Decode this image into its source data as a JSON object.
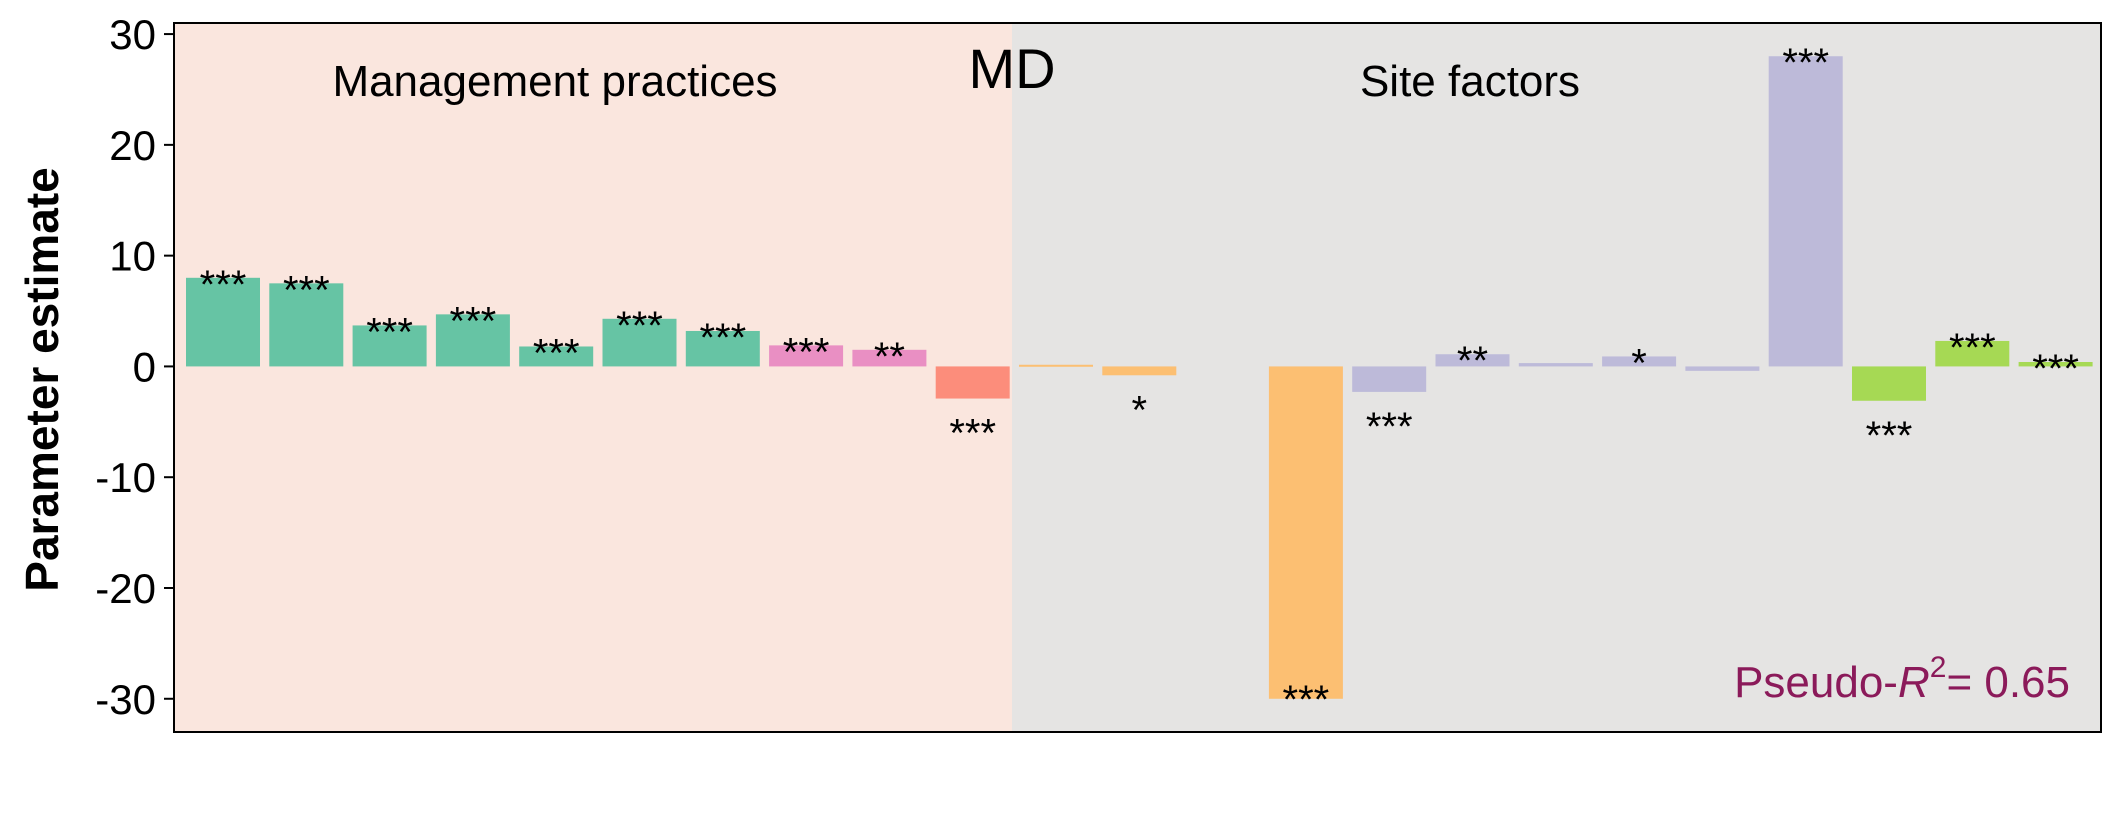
{
  "chart_data": {
    "type": "bar",
    "ylabel": "Parameter estimate",
    "ylim": [
      -33,
      31
    ],
    "yticks": [
      30,
      20,
      10,
      0,
      -10,
      -20,
      -30
    ],
    "ytick_labels": [
      "30",
      "20",
      "10",
      "0",
      "-10",
      "-20",
      "-30"
    ],
    "grid": false,
    "regions": [
      {
        "label": "Management practices",
        "from_bar": 0,
        "to_bar": 9,
        "color": "#fae6de"
      },
      {
        "label": "Site factors",
        "from_bar": 10,
        "to_bar": 22,
        "color": "#e5e4e3"
      }
    ],
    "center_label": "MD",
    "annotation": {
      "prefix": "Pseudo-",
      "var": "R",
      "sup": "2",
      "suffix": "= 0.65",
      "color": "#8b1a5a"
    },
    "bars": [
      {
        "value": 8.0,
        "color": "#66c4a4",
        "sig": "***"
      },
      {
        "value": 7.5,
        "color": "#66c4a4",
        "sig": "***"
      },
      {
        "value": 3.7,
        "color": "#66c4a4",
        "sig": "***"
      },
      {
        "value": 4.7,
        "color": "#66c4a4",
        "sig": "***"
      },
      {
        "value": 1.8,
        "color": "#66c4a4",
        "sig": "***"
      },
      {
        "value": 4.3,
        "color": "#66c4a4",
        "sig": "***"
      },
      {
        "value": 3.2,
        "color": "#66c4a4",
        "sig": "***"
      },
      {
        "value": 1.9,
        "color": "#e98fc3",
        "sig": "***"
      },
      {
        "value": 1.5,
        "color": "#e98fc3",
        "sig": "**"
      },
      {
        "value": -2.9,
        "color": "#fc8d7b",
        "sig": "***"
      },
      {
        "value": 0.15,
        "color": "#fcbf72",
        "sig": ""
      },
      {
        "value": -0.8,
        "color": "#fcbf72",
        "sig": "*"
      },
      {
        "value": 0,
        "color": "#fcbf72",
        "sig": ""
      },
      {
        "value": -30.0,
        "color": "#fcbf72",
        "sig": "***"
      },
      {
        "value": -2.3,
        "color": "#bdbad9",
        "sig": "***"
      },
      {
        "value": 1.1,
        "color": "#bdbad9",
        "sig": "**"
      },
      {
        "value": 0.3,
        "color": "#bdbad9",
        "sig": ""
      },
      {
        "value": 0.9,
        "color": "#bdbad9",
        "sig": "*"
      },
      {
        "value": -0.4,
        "color": "#bdbad9",
        "sig": ""
      },
      {
        "value": 28.0,
        "color": "#bdbad9",
        "sig": "***"
      },
      {
        "value": -3.1,
        "color": "#a6d954",
        "sig": "***"
      },
      {
        "value": 2.3,
        "color": "#a6d954",
        "sig": "***"
      },
      {
        "value": 0.4,
        "color": "#a6d954",
        "sig": "***"
      }
    ]
  }
}
